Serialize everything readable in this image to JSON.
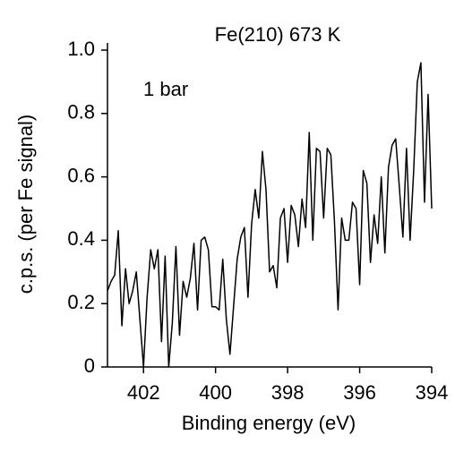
{
  "chart_data": {
    "type": "line",
    "title": "Fe(210) 673 K",
    "annotation": "1 bar",
    "xlabel": "Binding energy (eV)",
    "ylabel": "c.p.s. (per Fe signal)",
    "x": [
      403.0,
      402.9,
      402.8,
      402.7,
      402.6,
      402.5,
      402.4,
      402.3,
      402.2,
      402.1,
      402.0,
      401.9,
      401.8,
      401.7,
      401.6,
      401.5,
      401.4,
      401.3,
      401.2,
      401.1,
      401.0,
      400.9,
      400.8,
      400.7,
      400.6,
      400.5,
      400.4,
      400.3,
      400.2,
      400.1,
      400.0,
      399.9,
      399.8,
      399.7,
      399.6,
      399.5,
      399.4,
      399.3,
      399.2,
      399.1,
      399.0,
      398.9,
      398.8,
      398.7,
      398.6,
      398.5,
      398.4,
      398.3,
      398.2,
      398.1,
      398.0,
      397.9,
      397.8,
      397.7,
      397.6,
      397.5,
      397.4,
      397.3,
      397.2,
      397.1,
      397.0,
      396.9,
      396.8,
      396.7,
      396.6,
      396.5,
      396.4,
      396.3,
      396.2,
      396.1,
      396.0,
      395.9,
      395.8,
      395.7,
      395.6,
      395.5,
      395.4,
      395.3,
      395.2,
      395.1,
      395.0,
      394.9,
      394.8,
      394.7,
      394.6,
      394.5,
      394.4,
      394.3,
      394.2,
      394.1,
      394.0
    ],
    "series": [
      {
        "color": "#000000",
        "values": [
          0.24,
          0.27,
          0.29,
          0.43,
          0.13,
          0.31,
          0.2,
          0.24,
          0.3,
          0.15,
          0.0,
          0.22,
          0.37,
          0.31,
          0.37,
          0.08,
          0.35,
          0.0,
          0.14,
          0.38,
          0.1,
          0.27,
          0.22,
          0.28,
          0.39,
          0.18,
          0.4,
          0.41,
          0.37,
          0.19,
          0.19,
          0.18,
          0.34,
          0.15,
          0.04,
          0.19,
          0.34,
          0.41,
          0.44,
          0.22,
          0.45,
          0.56,
          0.47,
          0.68,
          0.56,
          0.3,
          0.32,
          0.25,
          0.47,
          0.5,
          0.33,
          0.51,
          0.48,
          0.38,
          0.53,
          0.44,
          0.74,
          0.4,
          0.69,
          0.68,
          0.47,
          0.69,
          0.67,
          0.46,
          0.18,
          0.47,
          0.4,
          0.4,
          0.52,
          0.5,
          0.26,
          0.62,
          0.58,
          0.33,
          0.48,
          0.39,
          0.6,
          0.36,
          0.63,
          0.7,
          0.72,
          0.57,
          0.41,
          0.69,
          0.4,
          0.62,
          0.9,
          0.96,
          0.52,
          0.86,
          0.5
        ]
      }
    ],
    "xlim": [
      403,
      394
    ],
    "xticks": [
      402,
      400,
      398,
      396,
      394
    ],
    "ylim": [
      0,
      1
    ],
    "yticks": [
      0,
      0.2,
      0.4,
      0.6,
      0.8,
      {
        "value": 1,
        "label": "1.0"
      }
    ]
  }
}
